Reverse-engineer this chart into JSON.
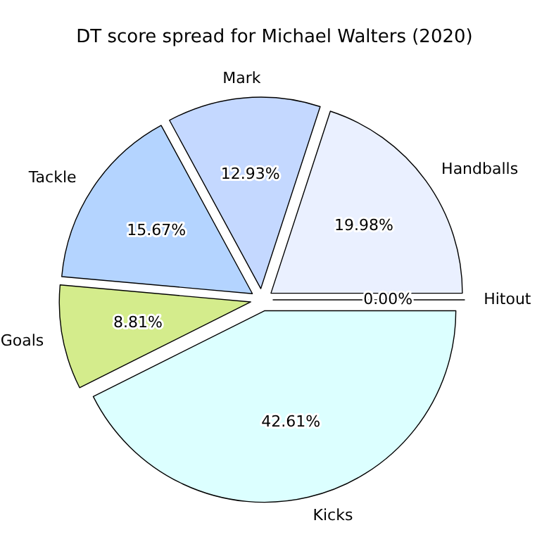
{
  "chart_data": {
    "type": "pie",
    "title": "DT score spread for Michael Walters (2020)",
    "categories": [
      "Hitout",
      "Handballs",
      "Mark",
      "Tackle",
      "Goals",
      "Kicks"
    ],
    "values": [
      0.0,
      19.98,
      12.93,
      15.67,
      8.81,
      42.61
    ],
    "colors": [
      "#dde6ff",
      "#eaf0ff",
      "#c4d8ff",
      "#b4d4ff",
      "#d4ec8c",
      "#dcffff"
    ],
    "value_labels": [
      "0.00%",
      "19.98%",
      "12.93%",
      "15.67%",
      "8.81%",
      "42.61%"
    ],
    "legend": false
  }
}
